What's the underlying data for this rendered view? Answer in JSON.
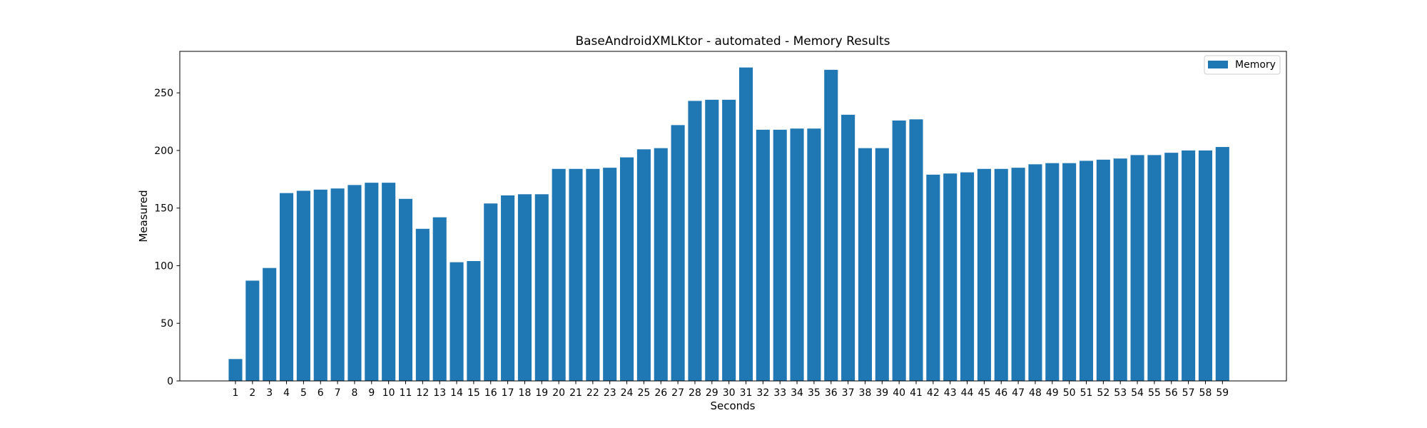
{
  "chart_data": {
    "type": "bar",
    "title": "BaseAndroidXMLKtor - automated - Memory Results",
    "xlabel": "Seconds",
    "ylabel": "Measured",
    "ylim": [
      0,
      286
    ],
    "yticks": [
      0,
      50,
      100,
      150,
      200,
      250
    ],
    "grid": false,
    "legend_position": "top-right",
    "bar_color": "#1f77b4",
    "categories": [
      "1",
      "2",
      "3",
      "4",
      "5",
      "6",
      "7",
      "8",
      "9",
      "10",
      "11",
      "12",
      "13",
      "14",
      "15",
      "16",
      "17",
      "18",
      "19",
      "20",
      "21",
      "22",
      "23",
      "24",
      "25",
      "26",
      "27",
      "28",
      "29",
      "30",
      "31",
      "32",
      "33",
      "34",
      "35",
      "36",
      "37",
      "38",
      "39",
      "40",
      "41",
      "42",
      "43",
      "44",
      "45",
      "46",
      "47",
      "48",
      "49",
      "50",
      "51",
      "52",
      "53",
      "54",
      "55",
      "56",
      "57",
      "58",
      "59"
    ],
    "series": [
      {
        "name": "Memory",
        "values": [
          19,
          87,
          98,
          163,
          165,
          166,
          167,
          170,
          172,
          172,
          158,
          132,
          142,
          103,
          104,
          154,
          161,
          162,
          162,
          184,
          184,
          184,
          185,
          194,
          201,
          202,
          222,
          243,
          244,
          244,
          272,
          218,
          218,
          219,
          219,
          270,
          231,
          202,
          202,
          226,
          227,
          179,
          180,
          181,
          184,
          184,
          185,
          188,
          189,
          189,
          191,
          192,
          193,
          196,
          196,
          198,
          200,
          200,
          203
        ]
      }
    ]
  }
}
